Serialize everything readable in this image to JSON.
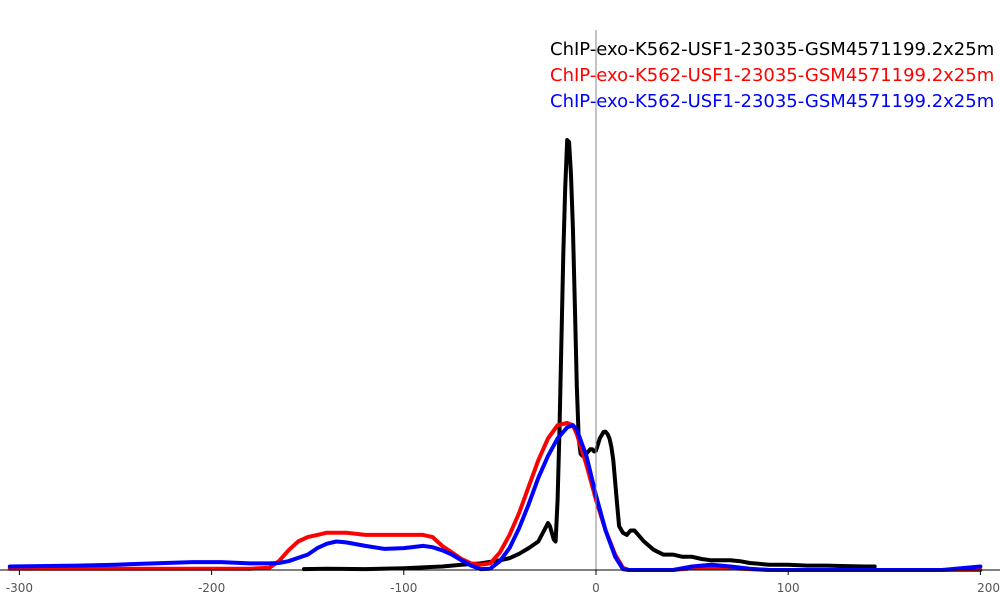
{
  "chart_data": {
    "type": "line",
    "title": "",
    "xlabel": "",
    "ylabel": "",
    "xlim": [
      -305,
      200
    ],
    "ylim": [
      0,
      1.0
    ],
    "grid": false,
    "legend_position": "top-right",
    "x_ticks": [
      -300,
      -200,
      -100,
      0,
      100,
      200
    ],
    "x_tick_labels": [
      "-300",
      "-200",
      "-100",
      "0",
      "100",
      "200"
    ],
    "zero_line": 0,
    "series": [
      {
        "name": "ChIP-exo-K562-USF1-23035-GSM4571199.2x25m",
        "color": "#000000",
        "x": [
          -152,
          -140,
          -120,
          -100,
          -90,
          -80,
          -70,
          -60,
          -50,
          -45,
          -40,
          -35,
          -30,
          -27,
          -25,
          -24,
          -22,
          -21,
          -20,
          -19,
          -18,
          -17,
          -16,
          -15,
          -14,
          -13,
          -12,
          -11,
          -10,
          -9,
          -8,
          -7,
          -6,
          -5,
          -4,
          -3,
          -2,
          -1,
          0,
          2,
          4,
          5,
          6,
          7,
          8,
          9,
          10,
          11,
          12,
          14,
          16,
          18,
          20,
          22,
          25,
          30,
          35,
          40,
          45,
          50,
          55,
          60,
          70,
          75,
          80,
          90,
          100,
          110,
          120,
          130,
          140,
          145
        ],
        "y": [
          0.002,
          0.003,
          0.002,
          0.004,
          0.006,
          0.008,
          0.012,
          0.015,
          0.022,
          0.027,
          0.037,
          0.05,
          0.065,
          0.09,
          0.107,
          0.1,
          0.07,
          0.065,
          0.16,
          0.32,
          0.52,
          0.72,
          0.87,
          0.98,
          0.975,
          0.9,
          0.78,
          0.6,
          0.42,
          0.3,
          0.265,
          0.26,
          0.26,
          0.265,
          0.27,
          0.275,
          0.275,
          0.27,
          0.272,
          0.3,
          0.315,
          0.315,
          0.31,
          0.3,
          0.28,
          0.25,
          0.2,
          0.15,
          0.1,
          0.085,
          0.08,
          0.09,
          0.09,
          0.08,
          0.065,
          0.046,
          0.035,
          0.035,
          0.03,
          0.03,
          0.025,
          0.022,
          0.022,
          0.02,
          0.016,
          0.012,
          0.012,
          0.01,
          0.01,
          0.009,
          0.008,
          0.008
        ]
      },
      {
        "name": "ChIP-exo-K562-USF1-23035-GSM4571199.2x25m",
        "color": "#ff0000",
        "x": [
          -305,
          -280,
          -260,
          -240,
          -220,
          -200,
          -190,
          -180,
          -170,
          -165,
          -160,
          -155,
          -150,
          -145,
          -140,
          -130,
          -120,
          -110,
          -100,
          -90,
          -85,
          -80,
          -75,
          -70,
          -65,
          -60,
          -55,
          -50,
          -45,
          -40,
          -35,
          -30,
          -25,
          -20,
          -15,
          -12,
          -10,
          -5,
          0,
          5,
          10,
          14,
          17,
          20,
          30,
          40,
          50,
          60,
          70,
          80,
          90,
          100,
          120,
          150,
          180,
          200
        ],
        "y": [
          0.003,
          0.003,
          0.003,
          0.003,
          0.003,
          0.003,
          0.003,
          0.003,
          0.005,
          0.02,
          0.045,
          0.065,
          0.075,
          0.08,
          0.085,
          0.085,
          0.08,
          0.08,
          0.08,
          0.08,
          0.075,
          0.055,
          0.04,
          0.025,
          0.015,
          0.012,
          0.015,
          0.04,
          0.08,
          0.13,
          0.19,
          0.25,
          0.3,
          0.33,
          0.335,
          0.33,
          0.31,
          0.24,
          0.16,
          0.09,
          0.035,
          0.005,
          0.0,
          0.0,
          0.0,
          0.0,
          0.004,
          0.006,
          0.004,
          0.002,
          0.0,
          0.0,
          0.0,
          0.0,
          0.0,
          0.0
        ]
      },
      {
        "name": "ChIP-exo-K562-USF1-23035-GSM4571199.2x25m",
        "color": "#0000ff",
        "x": [
          -305,
          -290,
          -270,
          -250,
          -230,
          -210,
          -195,
          -180,
          -170,
          -165,
          -160,
          -150,
          -145,
          -140,
          -135,
          -130,
          -120,
          -110,
          -100,
          -90,
          -85,
          -80,
          -75,
          -70,
          -65,
          -60,
          -55,
          -50,
          -45,
          -40,
          -35,
          -30,
          -25,
          -20,
          -15,
          -12,
          -10,
          -5,
          0,
          5,
          10,
          14,
          17,
          20,
          30,
          40,
          50,
          60,
          70,
          80,
          90,
          100,
          120,
          150,
          180,
          200
        ],
        "y": [
          0.008,
          0.009,
          0.01,
          0.012,
          0.015,
          0.018,
          0.018,
          0.015,
          0.015,
          0.016,
          0.02,
          0.035,
          0.05,
          0.06,
          0.065,
          0.063,
          0.055,
          0.048,
          0.05,
          0.055,
          0.052,
          0.045,
          0.035,
          0.022,
          0.01,
          0.002,
          0.003,
          0.02,
          0.05,
          0.095,
          0.15,
          0.21,
          0.26,
          0.3,
          0.325,
          0.33,
          0.32,
          0.26,
          0.17,
          0.09,
          0.03,
          0.002,
          0.0,
          0.0,
          0.0,
          0.0,
          0.008,
          0.012,
          0.008,
          0.003,
          0.0,
          0.0,
          0.0,
          0.0,
          0.0,
          0.008
        ]
      }
    ]
  }
}
